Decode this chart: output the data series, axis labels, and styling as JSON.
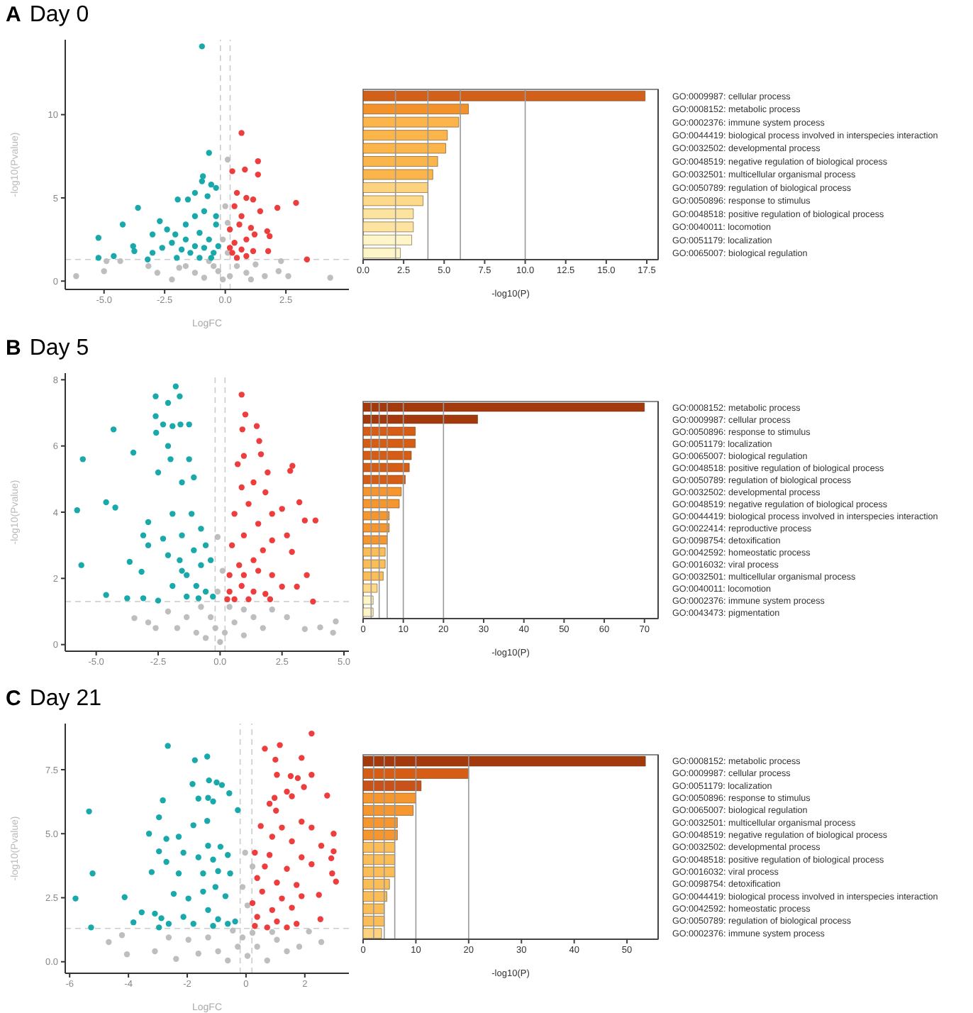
{
  "chart_data": [
    {
      "type": "scatter",
      "title": "Day 0",
      "annotations": [
        "A"
      ],
      "xlabel": "LogFC",
      "ylabel": "-log10(Pvalue)",
      "xlim": [
        -6.6,
        5.1
      ],
      "ylim": [
        -0.5,
        14.5
      ],
      "xticks": [
        {
          "value": -5,
          "label": "-5.0"
        },
        {
          "value": -2.5,
          "label": "-2.5"
        },
        {
          "value": 0,
          "label": "0.0"
        },
        {
          "value": 2.5,
          "label": "2.5"
        }
      ],
      "yticks": [
        0,
        5,
        10
      ],
      "marker": "circle",
      "ref_lines": [
        {
          "axis": "x",
          "value": -0.2,
          "color": "#cccccc",
          "line_style": "dashed"
        },
        {
          "axis": "x",
          "value": 0.2,
          "color": "#cccccc",
          "line_style": "dashed"
        },
        {
          "axis": "y",
          "value": 1.3,
          "color": "#cccccc",
          "line_style": "dashed"
        }
      ],
      "series": [
        {
          "color": "#bebebe",
          "x": [
            0.1,
            0,
            0.1,
            -0.1,
            0.1,
            -6.15,
            -5.0,
            -4.9,
            -4.33,
            -3.17,
            -2.8,
            -2.2,
            -1.63,
            -1.25,
            -0.87,
            -0.48,
            -0.29,
            -0.1,
            0.19,
            0.48,
            0.87,
            1.25,
            1.63,
            2.2,
            2.3,
            2.6,
            4.33,
            -0.67,
            -1.9,
            1.06
          ],
          "values": [
            7.3,
            4.5,
            3.5,
            2.5,
            1.7,
            0.3,
            0.6,
            1.2,
            1.2,
            0.9,
            0.5,
            0.1,
            0.9,
            0.5,
            0.2,
            0.9,
            0.6,
            0.1,
            0.3,
            0.9,
            0.5,
            1.0,
            0.3,
            0.6,
            1.2,
            0.3,
            0.2,
            1.2,
            0.8,
            0.1
          ]
        },
        {
          "color": "#19a9ab",
          "x": [
            -0.96,
            -0.67,
            -0.92,
            -0.96,
            -0.58,
            -0.38,
            -1.25,
            -1.96,
            -1.54,
            -0.73,
            -3.6,
            -4.23,
            -5.23,
            -4.6,
            -5.23,
            -3.8,
            -3.75,
            -2.7,
            -3.0,
            -2.4,
            -2.06,
            -1.63,
            -1.25,
            -0.87,
            -0.38,
            -0.38,
            -3.0,
            -2.6,
            -2.2,
            -1.8,
            -1.63,
            -1.44,
            -1.25,
            -1.06,
            -0.87,
            -0.67,
            -0.48,
            -0.29,
            -2.0,
            -1.06,
            -0.58,
            -3.2
          ],
          "values": [
            14.1,
            7.7,
            6.3,
            6.0,
            5.8,
            5.6,
            5.3,
            4.9,
            4.9,
            5.1,
            4.4,
            3.4,
            2.6,
            1.5,
            1.4,
            2.1,
            1.8,
            3.6,
            2.8,
            3.1,
            2.8,
            3.4,
            3.9,
            4.2,
            3.9,
            3.4,
            1.7,
            2.0,
            2.3,
            1.9,
            2.5,
            1.7,
            2.1,
            2.9,
            2.0,
            2.5,
            1.7,
            2.1,
            1.4,
            1.4,
            1.4,
            1.3
          ]
        },
        {
          "color": "#ee3d3d",
          "x": [
            0.67,
            1.35,
            1.35,
            0.81,
            0.29,
            0.48,
            0.87,
            1.15,
            2.92,
            2.15,
            1.44,
            0.38,
            0.67,
            0.58,
            0.19,
            1.73,
            1.83,
            1.21,
            0.87,
            0.38,
            0.67,
            1.15,
            1.77,
            0.29,
            0.48,
            0.87,
            3.37,
            0.19,
            1.06
          ],
          "values": [
            8.9,
            7.2,
            6.4,
            6.7,
            6.6,
            5.3,
            5.0,
            4.9,
            4.7,
            4.4,
            4.2,
            4.5,
            3.9,
            3.4,
            3.1,
            3.0,
            2.7,
            2.8,
            2.5,
            2.3,
            1.9,
            1.8,
            1.8,
            1.7,
            1.4,
            1.5,
            1.3,
            2.0,
            3.2
          ]
        }
      ]
    },
    {
      "type": "bar",
      "orientation": "horizontal",
      "xlabel": "-log10(P)",
      "xlim": [
        0,
        18.2
      ],
      "xticks": [
        {
          "value": 0,
          "label": "0.0"
        },
        {
          "value": 2.5,
          "label": "2.5"
        },
        {
          "value": 5,
          "label": "5.0"
        },
        {
          "value": 7.5,
          "label": "7.5"
        },
        {
          "value": 10,
          "label": "10.0"
        },
        {
          "value": 12.5,
          "label": "12.5"
        },
        {
          "value": 15,
          "label": "15.0"
        },
        {
          "value": 17.5,
          "label": "17.5"
        }
      ],
      "ref_lines": [
        {
          "axis": "x",
          "value": 2,
          "color": "#999999"
        },
        {
          "axis": "x",
          "value": 4,
          "color": "#999999"
        },
        {
          "axis": "x",
          "value": 6,
          "color": "#999999"
        },
        {
          "axis": "x",
          "value": 10,
          "color": "#999999"
        }
      ],
      "categories": [
        "GO:0009987: cellular process",
        "GO:0008152: metabolic process",
        "GO:0002376: immune system process",
        "GO:0044419: biological process involved in interspecies interaction",
        "GO:0032502: developmental process",
        "GO:0048519: negative regulation of biological process",
        "GO:0032501: multicellular organismal process",
        "GO:0050789: regulation of biological process",
        "GO:0050896: response to stimulus",
        "GO:0048518: positive regulation of biological process",
        "GO:0040011: locomotion",
        "GO:0051179: localization",
        "GO:0065007: biological regulation"
      ],
      "values": [
        17.4,
        6.5,
        5.9,
        5.2,
        5.1,
        4.6,
        4.3,
        4.0,
        3.7,
        3.1,
        3.1,
        3.0,
        2.3
      ],
      "colors": [
        "#d2601a",
        "#f3922b",
        "#fbb54a",
        "#fbb54a",
        "#fbb54a",
        "#fbb54a",
        "#fbb54a",
        "#fdd37f",
        "#fdd98a",
        "#fde3a0",
        "#fde3a0",
        "#fef6c8",
        "#fef6c8"
      ]
    },
    {
      "type": "scatter",
      "title": "Day 5",
      "annotations": [
        "B"
      ],
      "ylabel": "-log10(Pvalue)",
      "xlim": [
        -6.25,
        5.2
      ],
      "ylim": [
        -0.2,
        8.2
      ],
      "xticks": [
        {
          "value": -5,
          "label": "-5.0"
        },
        {
          "value": -2.5,
          "label": "-2.5"
        },
        {
          "value": 0,
          "label": "0.0"
        },
        {
          "value": 2.5,
          "label": "2.5"
        },
        {
          "value": 5,
          "label": "5.0"
        }
      ],
      "yticks": [
        0,
        2,
        4,
        6,
        8
      ],
      "marker": "circle",
      "ref_lines": [
        {
          "axis": "x",
          "value": -0.2,
          "color": "#cccccc",
          "line_style": "dashed"
        },
        {
          "axis": "x",
          "value": 0.2,
          "color": "#cccccc",
          "line_style": "dashed"
        },
        {
          "axis": "y",
          "value": 1.3,
          "color": "#cccccc",
          "line_style": "dashed"
        }
      ],
      "series": [
        {
          "color": "#bebebe",
          "x": [
            -0.1,
            0.1,
            -0.1,
            -3.46,
            -2.9,
            -2.6,
            -2.1,
            -1.73,
            -1.35,
            -0.96,
            -0.58,
            -0.19,
            0,
            0.19,
            0.58,
            0.96,
            1.35,
            1.73,
            2.1,
            2.7,
            3.42,
            4.04,
            4.67,
            4.56,
            -0.77,
            -0.38,
            0.38,
            0.96
          ],
          "values": [
            3.25,
            2.23,
            1.6,
            0.8,
            0.67,
            0.5,
            1.0,
            0.5,
            0.83,
            0.36,
            0.2,
            0.5,
            0.08,
            0.36,
            0.67,
            0.28,
            0.83,
            0.5,
            1.06,
            0.83,
            0.47,
            0.52,
            0.7,
            0.36,
            1.14,
            0.83,
            1.14,
            1.06
          ]
        },
        {
          "color": "#19a9ab",
          "x": [
            -1.79,
            -2.6,
            -1.63,
            -2.1,
            -2.6,
            -2.3,
            -4.3,
            -1.92,
            -1.6,
            -1.25,
            -2.58,
            -5.54,
            -3.5,
            -2.1,
            -2.0,
            -1.25,
            -2.5,
            -1.54,
            -1.06,
            -5.77,
            -4.6,
            -4.23,
            -2.9,
            -1.92,
            -1.15,
            -3.1,
            -2.3,
            -1.54,
            -0.77,
            -5.6,
            -3.65,
            -3.17,
            -2.1,
            -1.63,
            -1.06,
            -0.58,
            -4.6,
            -3.75,
            -3.1,
            -2.5,
            -1.92,
            -1.35,
            -0.96,
            -0.58,
            -0.29,
            -0.87,
            -1.35,
            -1.54,
            -0.77,
            -0.38,
            -2.9
          ],
          "values": [
            7.8,
            7.5,
            7.5,
            7.3,
            6.9,
            6.65,
            6.5,
            6.6,
            6.65,
            6.65,
            6.4,
            5.6,
            5.8,
            6.0,
            5.6,
            5.6,
            5.2,
            4.9,
            5.05,
            4.06,
            4.3,
            4.14,
            3.7,
            3.95,
            3.95,
            3.3,
            3.2,
            3.3,
            3.5,
            2.4,
            2.5,
            2.2,
            2.7,
            2.55,
            2.85,
            3.0,
            1.5,
            1.4,
            1.4,
            1.33,
            1.77,
            2.1,
            1.77,
            1.6,
            1.45,
            1.4,
            1.45,
            2.23,
            2.4,
            2.55,
            3.0
          ]
        },
        {
          "color": "#ee3d3d",
          "x": [
            0.87,
            1.02,
            0.9,
            1.48,
            1.58,
            0.96,
            1.65,
            2.92,
            2.83,
            0.71,
            1.92,
            1.35,
            0.87,
            1.83,
            3.2,
            3.85,
            3.42,
            2.5,
            1.15,
            2.1,
            0.58,
            1.54,
            2.7,
            2.9,
            3.5,
            3.75,
            3.1,
            2.1,
            0.96,
            0.48,
            1.73,
            1.35,
            0.77,
            0.38,
            0.96,
            1.54,
            2.1,
            2.5,
            0.38,
            0.87,
            1.35,
            1.83,
            0.58,
            1.15,
            0.29,
            2.02
          ],
          "values": [
            7.55,
            6.95,
            6.5,
            6.6,
            6.15,
            5.7,
            5.75,
            5.4,
            5.25,
            5.45,
            5.2,
            4.9,
            4.75,
            4.6,
            4.3,
            3.75,
            3.75,
            4.1,
            4.25,
            3.95,
            3.95,
            3.65,
            3.3,
            2.8,
            2.1,
            1.3,
            1.75,
            3.15,
            3.3,
            3.0,
            2.85,
            2.55,
            2.4,
            2.1,
            2.1,
            2.23,
            2.1,
            1.75,
            1.6,
            1.77,
            1.6,
            1.53,
            1.37,
            1.37,
            1.37,
            1.37
          ]
        }
      ]
    },
    {
      "type": "bar",
      "orientation": "horizontal",
      "xlabel": "-log10(P)",
      "xlim": [
        0,
        73.4
      ],
      "xticks": [
        0,
        10,
        20,
        30,
        40,
        50,
        60,
        70
      ],
      "ref_lines": [
        {
          "axis": "x",
          "value": 2,
          "color": "#999999"
        },
        {
          "axis": "x",
          "value": 4,
          "color": "#999999"
        },
        {
          "axis": "x",
          "value": 6,
          "color": "#999999"
        },
        {
          "axis": "x",
          "value": 10,
          "color": "#999999"
        },
        {
          "axis": "x",
          "value": 20,
          "color": "#999999"
        }
      ],
      "categories": [
        "GO:0008152: metabolic process",
        "GO:0009987: cellular process",
        "GO:0050896: response to stimulus",
        "GO:0051179: localization",
        "GO:0065007: biological regulation",
        "GO:0048518: positive regulation of biological process",
        "GO:0050789: regulation of biological process",
        "GO:0032502: developmental process",
        "GO:0048519: negative regulation of biological process",
        "GO:0044419: biological process involved in interspecies interaction",
        "GO:0022414: reproductive process",
        "GO:0098754: detoxification",
        "GO:0042592: homeostatic process",
        "GO:0016032: viral process",
        "GO:0032501: multicellular organismal process",
        "GO:0040011: locomotion",
        "GO:0002376: immune system process",
        "GO:0043473: pigmentation"
      ],
      "values": [
        70,
        28.5,
        13,
        13,
        12,
        11.5,
        10.5,
        9.5,
        9,
        6.5,
        6.5,
        6,
        5.5,
        5.5,
        5,
        3.5,
        2.5,
        2.5
      ],
      "colors": [
        "#a3390c",
        "#a3390c",
        "#d65d16",
        "#d65d16",
        "#d65d16",
        "#d65d16",
        "#d65d16",
        "#f5962e",
        "#f5962e",
        "#f5962e",
        "#f5962e",
        "#f5962e",
        "#fbbd58",
        "#fbbd58",
        "#fbbd58",
        "#fdd98a",
        "#fef6c8",
        "#fef6c8"
      ]
    },
    {
      "type": "scatter",
      "title": "Day 21",
      "annotations": [
        "C"
      ],
      "xlabel": "LogFC",
      "ylabel": "-log10(Pvalue)",
      "xlim": [
        -6.15,
        3.5
      ],
      "ylim": [
        -0.45,
        9.3
      ],
      "xticks": [
        -6,
        -4,
        -2,
        0,
        2
      ],
      "yticks": [
        {
          "value": 0,
          "label": "0.0"
        },
        {
          "value": 2.5,
          "label": "2.5"
        },
        {
          "value": 5,
          "label": "5.0"
        },
        {
          "value": 7.5,
          "label": "7.5"
        }
      ],
      "marker": "circle",
      "ref_lines": [
        {
          "axis": "x",
          "value": -0.2,
          "color": "#cccccc",
          "line_style": "dashed"
        },
        {
          "axis": "x",
          "value": 0.2,
          "color": "#cccccc",
          "line_style": "dashed"
        },
        {
          "axis": "y",
          "value": 1.3,
          "color": "#cccccc",
          "line_style": "dashed"
        }
      ],
      "series": [
        {
          "color": "#bebebe",
          "x": [
            -0.03,
            0.22,
            -0.12,
            0.05,
            -4.67,
            -4.05,
            -4.22,
            -3.1,
            -2.38,
            -2.63,
            -1.96,
            -1.62,
            -1.29,
            -0.95,
            -0.62,
            -0.28,
            0.05,
            -0.12,
            0.38,
            0.72,
            1.05,
            1.39,
            1.81,
            2.14,
            2.56,
            0.22,
            -0.45,
            0.89
          ],
          "values": [
            4.26,
            3.72,
            2.92,
            2.2,
            0.77,
            0.29,
            1.04,
            0.41,
            0.11,
            0.95,
            0.86,
            0.32,
            0.95,
            0.41,
            0.05,
            0.59,
            0.23,
            0.95,
            0.59,
            0.05,
            0.86,
            0.41,
            0.59,
            1.18,
            0.77,
            1.13,
            1.22,
            1.16
          ]
        },
        {
          "color": "#19a9ab",
          "x": [
            -2.66,
            -1.32,
            -1.74,
            -1.26,
            -1.0,
            -0.82,
            -1.82,
            -1.62,
            -1.29,
            -1.12,
            -0.57,
            -2.83,
            -5.34,
            -0.28,
            -2.96,
            -1.32,
            -1.79,
            -3.3,
            -2.71,
            -2.29,
            -1.29,
            -0.87,
            -2.96,
            -2.13,
            -1.62,
            -1.12,
            -0.62,
            -3.21,
            -2.71,
            -5.22,
            -2.29,
            -1.46,
            -0.95,
            -0.54,
            -5.8,
            -4.13,
            -2.46,
            -1.96,
            -1.46,
            -1.04,
            -0.7,
            -3.55,
            -3.1,
            -2.88,
            -3.83,
            -2.96,
            -5.27,
            -2.63,
            -2.13,
            -1.79,
            -1.29,
            -0.95,
            -0.62,
            -1.12,
            -0.37
          ],
          "values": [
            8.43,
            8.01,
            7.87,
            7.08,
            7.0,
            6.9,
            6.94,
            6.37,
            6.4,
            6.26,
            6.58,
            6.3,
            5.87,
            5.92,
            5.64,
            5.5,
            5.33,
            5.0,
            4.8,
            4.88,
            4.53,
            4.49,
            4.31,
            4.26,
            4.08,
            3.99,
            4.17,
            3.5,
            3.9,
            3.45,
            3.45,
            3.45,
            3.54,
            3.45,
            2.47,
            2.52,
            2.65,
            2.47,
            2.74,
            2.92,
            2.56,
            1.93,
            1.88,
            1.7,
            1.54,
            1.34,
            1.34,
            1.48,
            1.75,
            1.48,
            2.02,
            1.66,
            1.48,
            1.4,
            1.57
          ]
        },
        {
          "color": "#ee3d3d",
          "x": [
            2.23,
            1.15,
            0.64,
            1.89,
            1.0,
            2.23,
            1.52,
            1.05,
            1.76,
            1.97,
            1.39,
            1.56,
            2.76,
            0.97,
            0.8,
            1.02,
            1.89,
            2.98,
            0.5,
            1.22,
            2.23,
            0.89,
            1.56,
            2.98,
            2.56,
            0.3,
            0.8,
            1.89,
            2.9,
            0.64,
            1.39,
            2.23,
            2.93,
            3.06,
            0.38,
            1.05,
            1.72,
            2.48,
            0.55,
            1.22,
            1.89,
            0.22,
            0.89,
            1.56,
            2.53,
            0.38,
            1.05,
            1.72,
            0.3,
            0.72,
            1.39
          ],
          "values": [
            8.91,
            8.46,
            8.32,
            7.96,
            7.89,
            7.3,
            7.25,
            7.3,
            7.17,
            6.82,
            6.64,
            6.46,
            6.49,
            6.4,
            6.17,
            5.9,
            5.47,
            5.0,
            5.3,
            5.24,
            5.24,
            4.88,
            4.7,
            4.31,
            4.53,
            4.26,
            4.17,
            4.08,
            4.04,
            3.72,
            3.63,
            3.81,
            3.45,
            3.13,
            3.27,
            3.09,
            3.0,
            2.61,
            2.74,
            2.47,
            2.56,
            2.29,
            2.02,
            2.11,
            1.66,
            1.75,
            1.57,
            1.48,
            1.4,
            1.34,
            1.34
          ]
        }
      ]
    },
    {
      "type": "bar",
      "orientation": "horizontal",
      "xlabel": "-log10(P)",
      "xlim": [
        0,
        55.9
      ],
      "xticks": [
        0,
        10,
        20,
        30,
        40,
        50
      ],
      "ref_lines": [
        {
          "axis": "x",
          "value": 2,
          "color": "#999999"
        },
        {
          "axis": "x",
          "value": 4,
          "color": "#999999"
        },
        {
          "axis": "x",
          "value": 6,
          "color": "#999999"
        },
        {
          "axis": "x",
          "value": 10,
          "color": "#999999"
        },
        {
          "axis": "x",
          "value": 20,
          "color": "#999999"
        }
      ],
      "categories": [
        "GO:0008152: metabolic process",
        "GO:0009987: cellular process",
        "GO:0051179: localization",
        "GO:0050896: response to stimulus",
        "GO:0065007: biological regulation",
        "GO:0032501: multicellular organismal process",
        "GO:0048519: negative regulation of biological process",
        "GO:0032502: developmental process",
        "GO:0048518: positive regulation of biological process",
        "GO:0016032: viral process",
        "GO:0098754: detoxification",
        "GO:0044419: biological process involved in interspecies interaction",
        "GO:0042592: homeostatic process",
        "GO:0050789: regulation of biological process",
        "GO:0002376: immune system process"
      ],
      "values": [
        53.5,
        20,
        11,
        10,
        9.5,
        6.5,
        6.5,
        6,
        6,
        6,
        5,
        4.5,
        4,
        4,
        3.5
      ],
      "colors": [
        "#a3390c",
        "#d65d16",
        "#c9521a",
        "#f5962e",
        "#f5962e",
        "#f5962e",
        "#f5962e",
        "#fbbd58",
        "#fbbd58",
        "#fbbd58",
        "#fbbd58",
        "#fbbd58",
        "#fbbd58",
        "#fbbd58",
        "#fdd37f"
      ]
    }
  ]
}
